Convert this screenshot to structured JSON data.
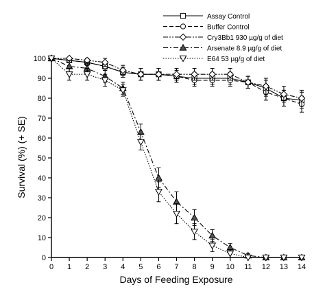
{
  "chart_data": {
    "type": "line",
    "xlabel": "Days of Feeding Exposure",
    "ylabel": "Survival (%) (+ SE)",
    "xlim": [
      0,
      14
    ],
    "ylim": [
      0,
      100
    ],
    "xticks": [
      0,
      1,
      2,
      3,
      4,
      5,
      6,
      7,
      8,
      9,
      10,
      11,
      12,
      13,
      14
    ],
    "yticks": [
      0,
      10,
      20,
      30,
      40,
      50,
      60,
      70,
      80,
      90,
      100
    ],
    "grid": false,
    "legend_position": "top-right",
    "x": [
      0,
      1,
      2,
      3,
      4,
      5,
      6,
      7,
      8,
      9,
      10,
      11,
      12,
      13,
      14
    ],
    "series": [
      {
        "name": "Assay Control",
        "marker": "square",
        "dash": "solid",
        "values": [
          100,
          99,
          98,
          96,
          93,
          92,
          92,
          91,
          90,
          90,
          90,
          88,
          85,
          80,
          79
        ],
        "se": [
          0,
          1,
          1.5,
          2,
          2.5,
          3,
          3,
          3,
          3,
          3,
          3,
          3,
          4,
          4,
          4
        ]
      },
      {
        "name": "Buffer Control",
        "marker": "circle",
        "dash": "dash",
        "values": [
          100,
          99,
          98,
          96,
          93,
          92,
          92,
          91,
          89,
          89,
          89,
          88,
          83,
          80,
          77
        ],
        "se": [
          0,
          1,
          1.5,
          2,
          2.5,
          3,
          3,
          3,
          3,
          3,
          3,
          3,
          4,
          4,
          4
        ]
      },
      {
        "name": "Cry3Bb1 930 µg/g of diet",
        "marker": "diamond",
        "dash": "dashdotdot",
        "values": [
          100,
          100,
          99,
          98,
          94,
          92,
          92,
          92,
          92,
          92,
          92,
          88,
          86,
          82,
          80
        ],
        "se": [
          0,
          1,
          1.5,
          2,
          2.5,
          3,
          3,
          3,
          3,
          3,
          3,
          3,
          4,
          4,
          4
        ]
      },
      {
        "name": "Arsenate 8.9 µg/g of diet",
        "marker": "triangle-up",
        "dash": "dashdot",
        "values": [
          100,
          96,
          95,
          91,
          85,
          63,
          40,
          28,
          20,
          11,
          5,
          1,
          0,
          0,
          0
        ],
        "se": [
          0,
          3,
          3,
          3,
          3,
          4,
          5,
          5,
          4,
          3,
          2,
          1,
          0,
          0,
          0
        ]
      },
      {
        "name": "E64 53 µg/g of diet",
        "marker": "triangle-down",
        "dash": "dot",
        "values": [
          100,
          92,
          92,
          89,
          84,
          58,
          33,
          22,
          13,
          6,
          2,
          0,
          0,
          0,
          0
        ],
        "se": [
          0,
          3,
          3,
          3,
          3,
          4,
          5,
          5,
          4,
          3,
          2,
          1,
          0,
          0,
          0
        ]
      }
    ]
  }
}
